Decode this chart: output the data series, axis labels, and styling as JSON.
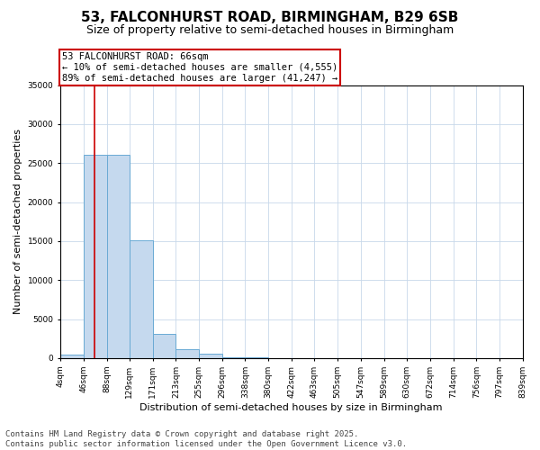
{
  "title": "53, FALCONHURST ROAD, BIRMINGHAM, B29 6SB",
  "subtitle": "Size of property relative to semi-detached houses in Birmingham",
  "xlabel": "Distribution of semi-detached houses by size in Birmingham",
  "ylabel": "Number of semi-detached properties",
  "bin_edges": [
    4,
    46,
    88,
    129,
    171,
    213,
    255,
    296,
    338,
    380,
    422,
    463,
    505,
    547,
    589,
    630,
    672,
    714,
    756,
    797,
    839
  ],
  "bar_heights": [
    400,
    26100,
    26100,
    15100,
    3100,
    1100,
    550,
    120,
    60,
    40,
    20,
    12,
    6,
    3,
    2,
    1,
    1,
    0,
    0,
    0
  ],
  "bar_color": "#c5d9ee",
  "bar_edge_color": "#6aaad4",
  "property_size": 66,
  "property_line_color": "#cc0000",
  "annotation_text": "53 FALCONHURST ROAD: 66sqm\n← 10% of semi-detached houses are smaller (4,555)\n89% of semi-detached houses are larger (41,247) →",
  "annotation_box_color": "#cc0000",
  "ylim": [
    0,
    35000
  ],
  "yticks": [
    0,
    5000,
    10000,
    15000,
    20000,
    25000,
    30000,
    35000
  ],
  "footer_text": "Contains HM Land Registry data © Crown copyright and database right 2025.\nContains public sector information licensed under the Open Government Licence v3.0.",
  "background_color": "#ffffff",
  "grid_color": "#c8d8ea",
  "title_fontsize": 11,
  "subtitle_fontsize": 9,
  "axis_label_fontsize": 8,
  "tick_fontsize": 6.5,
  "annotation_fontsize": 7.5,
  "footer_fontsize": 6.5
}
